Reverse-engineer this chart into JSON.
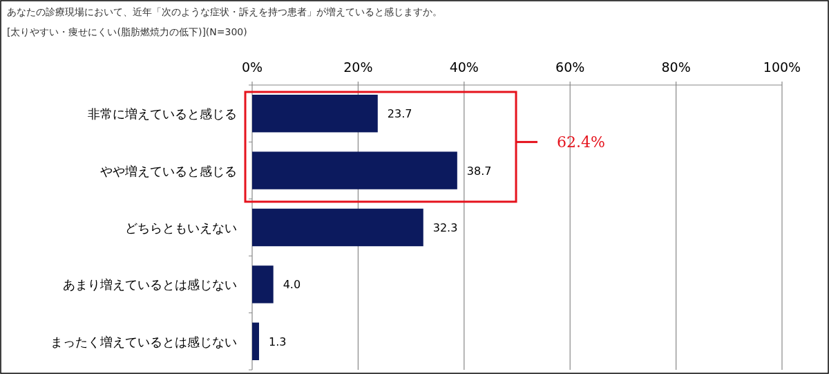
{
  "chart_data": {
    "type": "bar",
    "orientation": "horizontal",
    "title": "あなたの診療現場において、近年「次のような症状・訴えを持つ患者」が増えていると感じますか。",
    "subtitle": "[太りやすい・痩せにくい(脂肪燃焼力の低下)](N=300)",
    "categories": [
      "非常に増えていると感じる",
      "やや増えていると感じる",
      "どちらともいえない",
      "あまり増えているとは感じない",
      "まったく増えているとは感じない"
    ],
    "values": [
      23.7,
      38.7,
      32.3,
      4.0,
      1.3
    ],
    "value_labels": [
      "23.7",
      "38.7",
      "32.3",
      "4.0",
      "1.3"
    ],
    "color": "#0c1a5e",
    "xlim": [
      0,
      100
    ],
    "xticks": [
      {
        "value": 0,
        "label": "0%"
      },
      {
        "value": 20,
        "label": "20%"
      },
      {
        "value": 40,
        "label": "40%"
      },
      {
        "value": 60,
        "label": "60%"
      },
      {
        "value": 80,
        "label": "80%"
      },
      {
        "value": 100,
        "label": "100%"
      }
    ],
    "grid": "x",
    "annotations": [
      "62.4%"
    ]
  }
}
